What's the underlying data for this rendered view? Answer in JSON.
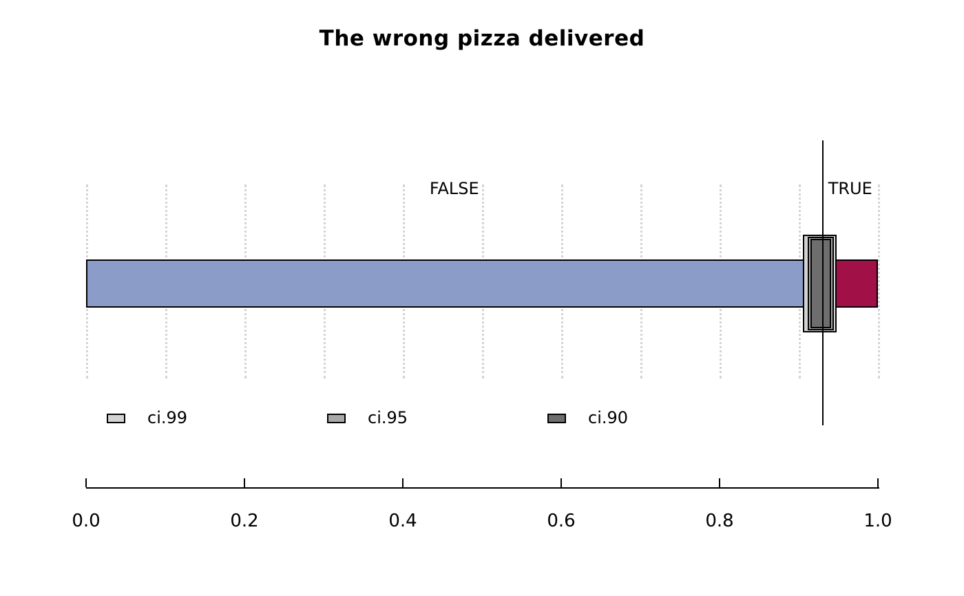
{
  "chart_data": {
    "type": "bar",
    "orientation": "horizontal",
    "title": "The wrong pizza delivered",
    "categories": [
      "FALSE",
      "TRUE"
    ],
    "values": [
      0.93,
      0.07
    ],
    "estimate": 0.93,
    "confidence_intervals": [
      {
        "name": "ci.99",
        "lower": 0.905,
        "upper": 0.948,
        "color": "#d3d3d3"
      },
      {
        "name": "ci.95",
        "lower": 0.911,
        "upper": 0.944,
        "color": "#a9a9a9"
      },
      {
        "name": "ci.90",
        "lower": 0.915,
        "upper": 0.941,
        "color": "#6e6e6e"
      }
    ],
    "xlim": [
      0,
      1
    ],
    "x_ticks": [
      0,
      0.2,
      0.4,
      0.6,
      0.8,
      1
    ],
    "x_tick_labels": [
      "0.0",
      "0.2",
      "0.4",
      "0.6",
      "0.8",
      "1.0"
    ],
    "gridlines": [
      0,
      0.1,
      0.2,
      0.3,
      0.4,
      0.5,
      0.6,
      0.7,
      0.8,
      0.9,
      1
    ],
    "grid": "vertical-dotted",
    "legend_position": "bottom-left",
    "colors": {
      "false_bar": "#8b9cc9",
      "true_bar": "#a21048",
      "estimate_line": "#000000",
      "gridline": "#d4d4d4"
    }
  }
}
